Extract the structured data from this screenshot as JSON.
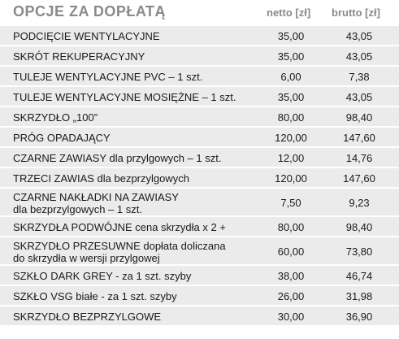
{
  "header": {
    "title": "OPCJE ZA DOPŁATĄ",
    "netto_label": "netto [zł]",
    "brutto_label": "brutto [zł]"
  },
  "rows": [
    {
      "name": "PODCIĘCIE WENTYLACYJNE",
      "netto": "35,00",
      "brutto": "43,05"
    },
    {
      "name": "SKRÓT REKUPERACYJNY",
      "netto": "35,00",
      "brutto": "43,05"
    },
    {
      "name": "TULEJE WENTYLACYJNE PVC – 1 szt.",
      "netto": "6,00",
      "brutto": "7,38"
    },
    {
      "name": "TULEJE WENTYLACYJNE MOSIĘŻNE – 1 szt.",
      "netto": "35,00",
      "brutto": "43,05"
    },
    {
      "name": "SKRZYDŁO „100”",
      "netto": "80,00",
      "brutto": "98,40"
    },
    {
      "name": "PRÓG OPADAJĄCY",
      "netto": "120,00",
      "brutto": "147,60"
    },
    {
      "name": "CZARNE ZAWIASY dla przylgowych – 1 szt.",
      "netto": "12,00",
      "brutto": "14,76"
    },
    {
      "name": "TRZECI ZAWIAS dla bezprzylgowych",
      "netto": "120,00",
      "brutto": "147,60"
    },
    {
      "name": "CZARNE NAKŁADKI NA ZAWIASY\ndla bezprzylgowych – 1 szt.",
      "netto": "7,50",
      "brutto": "9,23"
    },
    {
      "name": "SKRZYDŁA PODWÓJNE cena skrzydła x 2 +",
      "netto": "80,00",
      "brutto": "98,40"
    },
    {
      "name": "SKRZYDŁO PRZESUWNE dopłata doliczana\ndo skrzydła w wersji przylgowej",
      "netto": "60,00",
      "brutto": "73,80"
    },
    {
      "name": "SZKŁO DARK GREY - za 1 szt. szyby",
      "netto": "38,00",
      "brutto": "46,74"
    },
    {
      "name": "SZKŁO VSG białe - za 1 szt. szyby",
      "netto": "26,00",
      "brutto": "31,98"
    },
    {
      "name": "SKRZYDŁO BEZPRZYLGOWE",
      "netto": "30,00",
      "brutto": "36,90"
    }
  ]
}
